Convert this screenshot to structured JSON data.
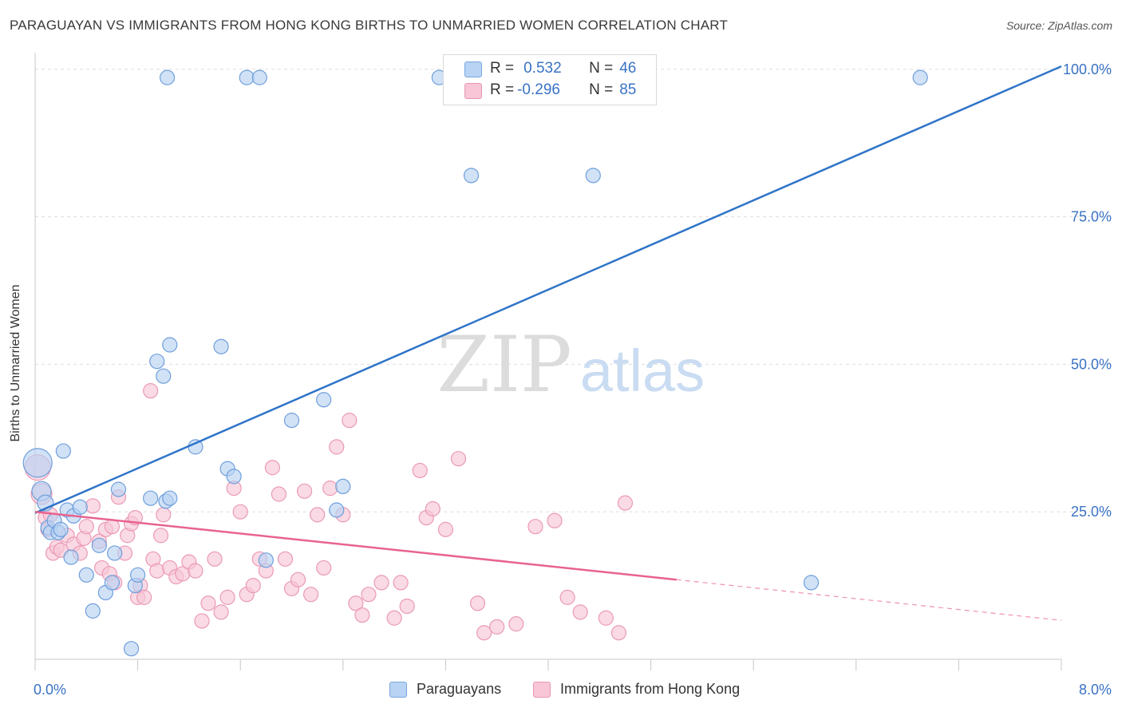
{
  "title": "PARAGUAYAN VS IMMIGRANTS FROM HONG KONG BIRTHS TO UNMARRIED WOMEN CORRELATION CHART",
  "source": "Source: ZipAtlas.com",
  "watermark": {
    "zip": "ZIP",
    "atlas": "atlas"
  },
  "legend": {
    "r_label": "R =",
    "n_label": "N =",
    "rows": [
      {
        "r": "0.532",
        "n": "46",
        "fill": "#b8d3f3",
        "stroke": "#7aa7e0"
      },
      {
        "r": "-0.296",
        "n": "85",
        "fill": "#f8c6d6",
        "stroke": "#e996b3"
      }
    ]
  },
  "bottom_legend": [
    {
      "label": "Paraguayans",
      "fill": "#b8d3f3",
      "stroke": "#7aa7e0"
    },
    {
      "label": "Immigrants from Hong Kong",
      "fill": "#f8c6d6",
      "stroke": "#e996b3"
    }
  ],
  "colors": {
    "blue_line": "#2f74c8",
    "pink_line": "#e8638f",
    "blue_fill": "#b8d3f3",
    "blue_stroke": "#6f9fdb",
    "pink_fill": "#f8c6d6",
    "pink_stroke": "#ea9ab6",
    "axis_label": "#3a72c4",
    "grid": "#dddddd"
  },
  "chart_data": {
    "type": "scatter",
    "title": "PARAGUAYAN VS IMMIGRANTS FROM HONG KONG BIRTHS TO UNMARRIED WOMEN CORRELATION CHART",
    "xlabel": "",
    "ylabel": "Births to Unmarried Women",
    "xlim": [
      0,
      8
    ],
    "ylim": [
      0,
      102
    ],
    "x_tick_labels": [
      {
        "value": 0,
        "label": "0.0%"
      },
      {
        "value": 8,
        "label": "8.0%"
      }
    ],
    "y_tick_labels": [
      {
        "value": 25,
        "label": "25.0%"
      },
      {
        "value": 50,
        "label": "50.0%"
      },
      {
        "value": 75,
        "label": "75.0%"
      },
      {
        "value": 100,
        "label": "100.0%"
      }
    ],
    "grid": true,
    "series": [
      {
        "name": "Paraguayans",
        "trend": {
          "x": [
            0,
            8
          ],
          "y": [
            24.8,
            100.5
          ],
          "dashed_from": null
        },
        "points": [
          [
            0.02,
            33.3,
            18
          ],
          [
            0.05,
            28.5,
            12
          ],
          [
            0.08,
            26.5,
            10
          ],
          [
            0.1,
            22.3,
            9
          ],
          [
            0.12,
            21.5,
            9
          ],
          [
            0.15,
            23.5,
            9
          ],
          [
            0.18,
            21.5,
            9
          ],
          [
            0.2,
            22.0,
            9
          ],
          [
            0.22,
            35.3,
            9
          ],
          [
            0.25,
            25.3,
            9
          ],
          [
            0.28,
            17.3,
            9
          ],
          [
            0.3,
            24.3,
            9
          ],
          [
            0.35,
            25.8,
            9
          ],
          [
            0.4,
            14.3,
            9
          ],
          [
            0.45,
            8.2,
            9
          ],
          [
            0.5,
            19.3,
            9
          ],
          [
            0.55,
            11.3,
            9
          ],
          [
            0.6,
            13.0,
            9
          ],
          [
            0.62,
            18.0,
            9
          ],
          [
            0.65,
            28.8,
            9
          ],
          [
            0.75,
            1.8,
            9
          ],
          [
            0.78,
            12.5,
            9
          ],
          [
            0.8,
            14.3,
            9
          ],
          [
            0.9,
            27.3,
            9
          ],
          [
            0.95,
            50.5,
            9
          ],
          [
            1.0,
            48.0,
            9
          ],
          [
            1.02,
            26.8,
            9
          ],
          [
            1.05,
            27.3,
            9
          ],
          [
            1.05,
            53.3,
            9
          ],
          [
            1.03,
            98.6,
            9
          ],
          [
            1.25,
            36.0,
            9
          ],
          [
            1.45,
            53.0,
            9
          ],
          [
            1.5,
            32.3,
            9
          ],
          [
            1.55,
            31.0,
            9
          ],
          [
            1.65,
            98.6,
            9
          ],
          [
            1.75,
            98.6,
            9
          ],
          [
            1.8,
            16.8,
            9
          ],
          [
            2.0,
            40.5,
            9
          ],
          [
            2.25,
            44.0,
            9
          ],
          [
            2.35,
            25.3,
            9
          ],
          [
            2.4,
            29.3,
            9
          ],
          [
            3.15,
            98.6,
            9
          ],
          [
            3.4,
            82.0,
            9
          ],
          [
            4.35,
            82.0,
            9
          ],
          [
            6.05,
            13.0,
            9
          ],
          [
            6.9,
            98.6,
            9
          ]
        ]
      },
      {
        "name": "Immigrants from Hong Kong",
        "trend": {
          "x": [
            0,
            8
          ],
          "y": [
            25.0,
            6.6
          ],
          "dashed_from": 5.0
        },
        "points": [
          [
            0.02,
            32.5,
            16
          ],
          [
            0.05,
            28.0,
            13
          ],
          [
            0.08,
            24.0,
            9
          ],
          [
            0.1,
            22.0,
            9
          ],
          [
            0.12,
            24.5,
            9
          ],
          [
            0.14,
            18.0,
            9
          ],
          [
            0.17,
            19.0,
            9
          ],
          [
            0.2,
            18.5,
            9
          ],
          [
            0.25,
            21.0,
            9
          ],
          [
            0.3,
            19.5,
            9
          ],
          [
            0.35,
            18.0,
            9
          ],
          [
            0.38,
            20.5,
            9
          ],
          [
            0.4,
            22.5,
            9
          ],
          [
            0.45,
            26.0,
            9
          ],
          [
            0.5,
            20.0,
            9
          ],
          [
            0.52,
            15.5,
            9
          ],
          [
            0.55,
            22.0,
            9
          ],
          [
            0.58,
            14.5,
            9
          ],
          [
            0.6,
            22.5,
            9
          ],
          [
            0.62,
            13.0,
            9
          ],
          [
            0.65,
            27.5,
            9
          ],
          [
            0.7,
            18.0,
            9
          ],
          [
            0.72,
            21.0,
            9
          ],
          [
            0.75,
            23.0,
            9
          ],
          [
            0.78,
            24.0,
            9
          ],
          [
            0.8,
            10.5,
            9
          ],
          [
            0.82,
            12.5,
            9
          ],
          [
            0.85,
            10.5,
            9
          ],
          [
            0.9,
            45.5,
            9
          ],
          [
            0.92,
            17.0,
            9
          ],
          [
            0.95,
            15.0,
            9
          ],
          [
            0.98,
            21.0,
            9
          ],
          [
            1.0,
            24.5,
            9
          ],
          [
            1.05,
            15.5,
            9
          ],
          [
            1.1,
            14.0,
            9
          ],
          [
            1.15,
            14.5,
            9
          ],
          [
            1.2,
            16.5,
            9
          ],
          [
            1.25,
            15.0,
            9
          ],
          [
            1.3,
            6.5,
            9
          ],
          [
            1.35,
            9.5,
            9
          ],
          [
            1.4,
            17.0,
            9
          ],
          [
            1.45,
            8.0,
            9
          ],
          [
            1.5,
            10.5,
            9
          ],
          [
            1.55,
            29.0,
            9
          ],
          [
            1.6,
            25.0,
            9
          ],
          [
            1.65,
            11.0,
            9
          ],
          [
            1.7,
            12.5,
            9
          ],
          [
            1.75,
            17.0,
            9
          ],
          [
            1.8,
            15.0,
            9
          ],
          [
            1.85,
            32.5,
            9
          ],
          [
            1.9,
            28.0,
            9
          ],
          [
            1.95,
            17.0,
            9
          ],
          [
            2.0,
            12.0,
            9
          ],
          [
            2.05,
            13.5,
            9
          ],
          [
            2.1,
            28.5,
            9
          ],
          [
            2.15,
            11.0,
            9
          ],
          [
            2.2,
            24.5,
            9
          ],
          [
            2.25,
            15.5,
            9
          ],
          [
            2.3,
            29.0,
            9
          ],
          [
            2.35,
            36.0,
            9
          ],
          [
            2.4,
            24.5,
            9
          ],
          [
            2.45,
            40.5,
            9
          ],
          [
            2.5,
            9.5,
            9
          ],
          [
            2.55,
            7.5,
            9
          ],
          [
            2.6,
            11.0,
            9
          ],
          [
            2.7,
            13.0,
            9
          ],
          [
            2.8,
            7.0,
            9
          ],
          [
            2.85,
            13.0,
            9
          ],
          [
            2.9,
            9.0,
            9
          ],
          [
            3.0,
            32.0,
            9
          ],
          [
            3.05,
            24.0,
            9
          ],
          [
            3.1,
            25.5,
            9
          ],
          [
            3.2,
            22.0,
            9
          ],
          [
            3.3,
            34.0,
            9
          ],
          [
            3.45,
            9.5,
            9
          ],
          [
            3.5,
            4.5,
            9
          ],
          [
            3.6,
            5.5,
            9
          ],
          [
            3.75,
            6.0,
            9
          ],
          [
            3.9,
            22.5,
            9
          ],
          [
            4.05,
            23.5,
            9
          ],
          [
            4.15,
            10.5,
            9
          ],
          [
            4.25,
            8.0,
            9
          ],
          [
            4.45,
            7.0,
            9
          ],
          [
            4.55,
            4.5,
            9
          ],
          [
            4.6,
            26.5,
            9
          ]
        ]
      }
    ]
  }
}
